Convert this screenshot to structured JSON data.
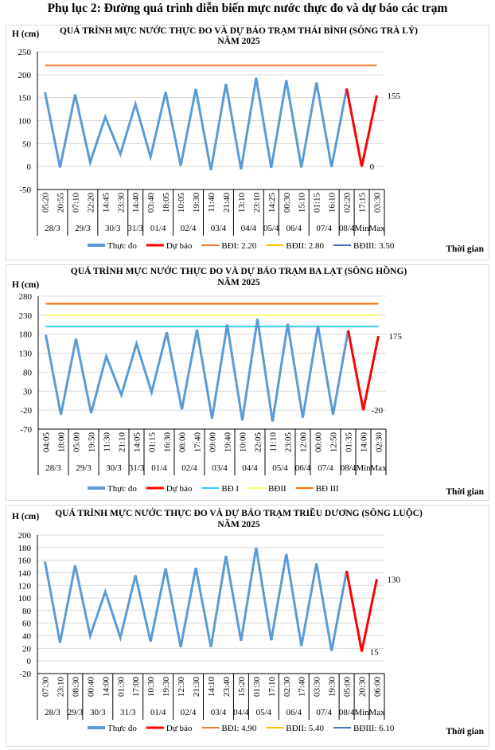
{
  "document_title": "Phụ lục 2: Đường quá trình diễn biến mực nước thực đo và dự báo các trạm",
  "chart_data": [
    {
      "type": "line",
      "title": "QUÁ TRÌNH MỰC NƯỚC THỰC ĐO VÀ DỰ BÁO TRẠM THÁI BÌNH (SÔNG TRÀ LÝ)",
      "subtitle": "NĂM 2025",
      "ylabel": "H (cm)",
      "xlabel": "Thời gian",
      "ylim": [
        -50,
        250
      ],
      "yticks": [
        -50,
        0,
        50,
        100,
        150,
        200,
        250
      ],
      "grid": true,
      "times": [
        "05:20",
        "20:55",
        "07:10",
        "22:20",
        "14:45",
        "23:30",
        "14:40",
        "03:40",
        "18:05",
        "10:05",
        "19:30",
        "11:40",
        "21:40",
        "13:10",
        "23:10",
        "14:25",
        "00:30",
        "15:10",
        "01:15",
        "16:10",
        "02:20",
        "17:15",
        "03:30"
      ],
      "date_groups": [
        {
          "label": "28/3",
          "span": 2
        },
        {
          "label": "29/3",
          "span": 2
        },
        {
          "label": "30/3",
          "span": 2
        },
        {
          "label": "31/3",
          "span": 1
        },
        {
          "label": "01/4",
          "span": 2
        },
        {
          "label": "02/4",
          "span": 2
        },
        {
          "label": "03/4",
          "span": 2
        },
        {
          "label": "04/4",
          "span": 2
        },
        {
          "label": "05/4",
          "span": 1
        },
        {
          "label": "06/4",
          "span": 2
        },
        {
          "label": "07/4",
          "span": 2
        },
        {
          "label": "08/4",
          "span": 1
        },
        {
          "label": "Min",
          "span": 1
        },
        {
          "label": "Max",
          "span": 1
        }
      ],
      "series": [
        {
          "name": "Thực đo",
          "color": "#5B9BD5",
          "values": [
            162,
            -2,
            157,
            9,
            108,
            27,
            136,
            21,
            162,
            2,
            169,
            -8,
            180,
            -6,
            193,
            -3,
            188,
            -2,
            183,
            -1,
            170,
            null,
            null
          ]
        },
        {
          "name": "Dự báo",
          "color": "#FF0000",
          "values": [
            null,
            null,
            null,
            null,
            null,
            null,
            null,
            null,
            null,
            null,
            null,
            null,
            null,
            null,
            null,
            null,
            null,
            null,
            null,
            null,
            170,
            0,
            155
          ]
        },
        {
          "name": "BĐI: 2.20",
          "color": "#ED7D31",
          "constant": 220
        },
        {
          "name": "BĐII: 2.80",
          "color": "#FFC000",
          "constant": null
        },
        {
          "name": "BĐIII: 3.50",
          "color": "#4472C4",
          "constant": null
        }
      ],
      "annotations": [
        {
          "index": 22,
          "text": "155"
        },
        {
          "index": 21,
          "text": "0"
        }
      ],
      "legend": "bottom"
    },
    {
      "type": "line",
      "title": "QUÁ TRÌNH MỰC NƯỚC THỰC ĐO VÀ DỰ BÁO TRẠM BA LẠT (SÔNG HỒNG)",
      "subtitle": "NĂM 2025",
      "ylabel": "H (cm)",
      "xlabel": "Thời gian",
      "ylim": [
        -70,
        280
      ],
      "yticks": [
        -70,
        -20,
        30,
        80,
        130,
        180,
        230,
        280
      ],
      "grid": true,
      "times": [
        "04:05",
        "18:00",
        "05:00",
        "19:50",
        "11:30",
        "21:10",
        "14:05",
        "01:15",
        "16:30",
        "08:00",
        "17:40",
        "09:00",
        "19:40",
        "10:00",
        "22:05",
        "11:10",
        "23:05",
        "12:00",
        "00:00",
        "12:50",
        "01:35",
        "14:00",
        "02:30"
      ],
      "date_groups": [
        {
          "label": "28/3",
          "span": 2
        },
        {
          "label": "29/3",
          "span": 2
        },
        {
          "label": "30/3",
          "span": 2
        },
        {
          "label": "31/3",
          "span": 1
        },
        {
          "label": "01/4",
          "span": 2
        },
        {
          "label": "02/4",
          "span": 2
        },
        {
          "label": "03/4",
          "span": 2
        },
        {
          "label": "04/4",
          "span": 2
        },
        {
          "label": "05/4",
          "span": 2
        },
        {
          "label": "06/4",
          "span": 1
        },
        {
          "label": "07/4",
          "span": 2
        },
        {
          "label": "08/4",
          "span": 1
        },
        {
          "label": "Min",
          "span": 1
        },
        {
          "label": "Max",
          "span": 1
        }
      ],
      "series": [
        {
          "name": "Thực đo",
          "color": "#5B9BD5",
          "values": [
            178,
            -32,
            168,
            -28,
            122,
            20,
            155,
            27,
            185,
            -18,
            192,
            -42,
            205,
            -47,
            220,
            -50,
            207,
            -40,
            202,
            -32,
            190,
            null,
            null
          ]
        },
        {
          "name": "Dự báo",
          "color": "#FF0000",
          "values": [
            null,
            null,
            null,
            null,
            null,
            null,
            null,
            null,
            null,
            null,
            null,
            null,
            null,
            null,
            null,
            null,
            null,
            null,
            null,
            null,
            190,
            -20,
            175
          ]
        },
        {
          "name": "BĐ I",
          "color": "#33CCFF",
          "constant": 200
        },
        {
          "name": "BĐII",
          "color": "#FFFF66",
          "constant": 230
        },
        {
          "name": "BĐ III",
          "color": "#FF6600",
          "constant": 260
        }
      ],
      "annotations": [
        {
          "index": 22,
          "text": "175"
        },
        {
          "index": 21,
          "text": "-20"
        }
      ],
      "legend": "bottom"
    },
    {
      "type": "line",
      "title": "QUÁ TRÌNH MỰC NƯỚC THỰC ĐO VÀ DỰ BÁO TRẠM TRIỀU DƯƠNG  (SÔNG LUỘC)",
      "subtitle": "NĂM 2025",
      "ylabel": "H (cm)",
      "xlabel": "Thời gian",
      "ylim": [
        -20,
        200
      ],
      "yticks": [
        -20,
        0,
        20,
        40,
        60,
        80,
        100,
        120,
        140,
        160,
        180,
        200
      ],
      "grid": true,
      "times": [
        "07:30",
        "23:10",
        "08:30",
        "00:40",
        "14:00",
        "01:30",
        "17:00",
        "10:30",
        "19:30",
        "12:30",
        "21:30",
        "14:10",
        "23:40",
        "15:20",
        "01:30",
        "17:10",
        "02:30",
        "17:40",
        "03:30",
        "19:30",
        "05:00",
        "20:30",
        "06:00"
      ],
      "date_groups": [
        {
          "label": "28/3",
          "span": 2
        },
        {
          "label": "29/3",
          "span": 1
        },
        {
          "label": "30/3",
          "span": 2
        },
        {
          "label": "31/3",
          "span": 2
        },
        {
          "label": "01/4",
          "span": 2
        },
        {
          "label": "02/4",
          "span": 2
        },
        {
          "label": "03/4",
          "span": 2
        },
        {
          "label": "04/4",
          "span": 1
        },
        {
          "label": "05/4",
          "span": 2
        },
        {
          "label": "06/4",
          "span": 2
        },
        {
          "label": "07/4",
          "span": 2
        },
        {
          "label": "08/4",
          "span": 1
        },
        {
          "label": "Min",
          "span": 1
        },
        {
          "label": "Max",
          "span": 1
        }
      ],
      "series": [
        {
          "name": "Thực đo",
          "color": "#5B9BD5",
          "values": [
            158,
            29,
            152,
            40,
            110,
            37,
            136,
            31,
            147,
            22,
            148,
            22,
            167,
            32,
            180,
            33,
            170,
            24,
            155,
            16,
            143,
            null,
            null
          ]
        },
        {
          "name": "Dự báo",
          "color": "#FF0000",
          "values": [
            null,
            null,
            null,
            null,
            null,
            null,
            null,
            null,
            null,
            null,
            null,
            null,
            null,
            null,
            null,
            null,
            null,
            null,
            null,
            null,
            143,
            15,
            130
          ]
        },
        {
          "name": "BĐI: 4.90",
          "color": "#ED7D31",
          "constant": null
        },
        {
          "name": "BĐII: 5.40",
          "color": "#FFC000",
          "constant": null
        },
        {
          "name": "BĐIII: 6.10",
          "color": "#4472C4",
          "constant": null
        }
      ],
      "annotations": [
        {
          "index": 22,
          "text": "130"
        },
        {
          "index": 21,
          "text": "15"
        }
      ],
      "legend": "bottom"
    }
  ]
}
